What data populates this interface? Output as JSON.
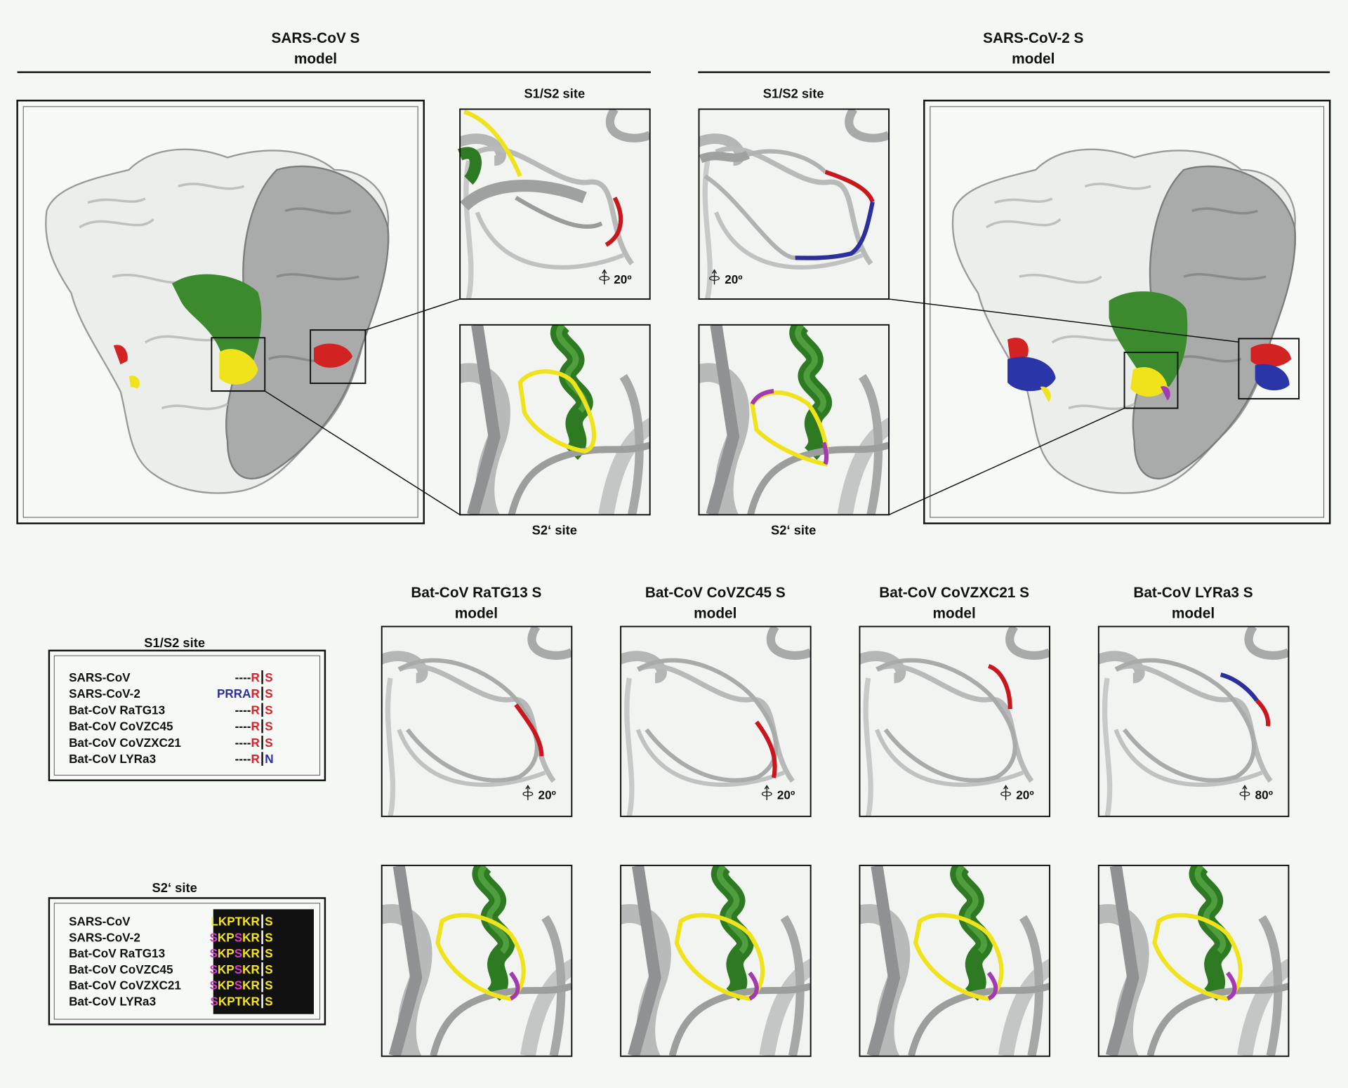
{
  "left_model": {
    "title": "SARS-CoV S",
    "subtitle": "model",
    "s1s2_label": "S1/S2 site",
    "s1s2_rotation": "20º",
    "s2_label": "S2‘ site"
  },
  "right_model": {
    "title": "SARS-CoV-2 S",
    "subtitle": "model",
    "s1s2_label": "S1/S2 site",
    "s1s2_rotation": "20º",
    "s2_label": "S2‘ site"
  },
  "bat_models": [
    {
      "title": "Bat-CoV RaTG13 S",
      "subtitle": "model",
      "rotation": "20º"
    },
    {
      "title": "Bat-CoV CoVZC45 S",
      "subtitle": "model",
      "rotation": "20º"
    },
    {
      "title": "Bat-CoV CoVZXC21 S",
      "subtitle": "model",
      "rotation": "20º"
    },
    {
      "title": "Bat-CoV LYRa3 S",
      "subtitle": "model",
      "rotation": "80º"
    }
  ],
  "s1s2_alignment": {
    "title": "S1/S2 site",
    "rows": [
      {
        "name": "SARS-CoV",
        "left": [
          {
            "text": "----",
            "color": "#111111"
          },
          {
            "text": "R",
            "color": "#d8232a"
          }
        ],
        "right": [
          {
            "text": "S",
            "color": "#d8232a"
          }
        ]
      },
      {
        "name": "SARS-CoV-2",
        "left": [
          {
            "text": "PRRA",
            "color": "#2b2f9c"
          },
          {
            "text": "R",
            "color": "#d8232a"
          }
        ],
        "right": [
          {
            "text": "S",
            "color": "#d8232a"
          }
        ]
      },
      {
        "name": "Bat-CoV RaTG13",
        "left": [
          {
            "text": "----",
            "color": "#111111"
          },
          {
            "text": "R",
            "color": "#d8232a"
          }
        ],
        "right": [
          {
            "text": "S",
            "color": "#d8232a"
          }
        ]
      },
      {
        "name": "Bat-CoV CoVZC45",
        "left": [
          {
            "text": "----",
            "color": "#111111"
          },
          {
            "text": "R",
            "color": "#d8232a"
          }
        ],
        "right": [
          {
            "text": "S",
            "color": "#d8232a"
          }
        ]
      },
      {
        "name": "Bat-CoV CoVZXC21",
        "left": [
          {
            "text": "----",
            "color": "#111111"
          },
          {
            "text": "R",
            "color": "#d8232a"
          }
        ],
        "right": [
          {
            "text": "S",
            "color": "#d8232a"
          }
        ]
      },
      {
        "name": "Bat-CoV LYRa3",
        "left": [
          {
            "text": "----",
            "color": "#111111"
          },
          {
            "text": "R",
            "color": "#d8232a"
          }
        ],
        "right": [
          {
            "text": "N",
            "color": "#2b2f9c"
          }
        ]
      }
    ]
  },
  "s2_alignment": {
    "title": "S2‘ site",
    "rows": [
      {
        "name": "SARS-CoV",
        "left": [
          {
            "text": "LKPTKR",
            "color": "#f5e61a"
          }
        ],
        "right": [
          {
            "text": "S",
            "color": "#f5e61a"
          }
        ]
      },
      {
        "name": "SARS-CoV-2",
        "left": [
          {
            "text": "S",
            "color": "#d23fc4"
          },
          {
            "text": "KP",
            "color": "#f5e61a"
          },
          {
            "text": "S",
            "color": "#d23fc4"
          },
          {
            "text": "KR",
            "color": "#f5e61a"
          }
        ],
        "right": [
          {
            "text": "S",
            "color": "#f5e61a"
          }
        ]
      },
      {
        "name": "Bat-CoV RaTG13",
        "left": [
          {
            "text": "S",
            "color": "#d23fc4"
          },
          {
            "text": "KP",
            "color": "#f5e61a"
          },
          {
            "text": "S",
            "color": "#d23fc4"
          },
          {
            "text": "KR",
            "color": "#f5e61a"
          }
        ],
        "right": [
          {
            "text": "S",
            "color": "#f5e61a"
          }
        ]
      },
      {
        "name": "Bat-CoV CoVZC45",
        "left": [
          {
            "text": "S",
            "color": "#d23fc4"
          },
          {
            "text": "KP",
            "color": "#f5e61a"
          },
          {
            "text": "S",
            "color": "#d23fc4"
          },
          {
            "text": "KR",
            "color": "#f5e61a"
          }
        ],
        "right": [
          {
            "text": "S",
            "color": "#f5e61a"
          }
        ]
      },
      {
        "name": "Bat-CoV CoVZXC21",
        "left": [
          {
            "text": "S",
            "color": "#d23fc4"
          },
          {
            "text": "KP",
            "color": "#f5e61a"
          },
          {
            "text": "S",
            "color": "#d23fc4"
          },
          {
            "text": "KR",
            "color": "#f5e61a"
          }
        ],
        "right": [
          {
            "text": "S",
            "color": "#f5e61a"
          }
        ]
      },
      {
        "name": "Bat-CoV LYRa3",
        "left": [
          {
            "text": "S",
            "color": "#d23fc4"
          },
          {
            "text": "KPTKR",
            "color": "#f5e61a"
          }
        ],
        "right": [
          {
            "text": "S",
            "color": "#f5e61a"
          }
        ]
      }
    ]
  }
}
